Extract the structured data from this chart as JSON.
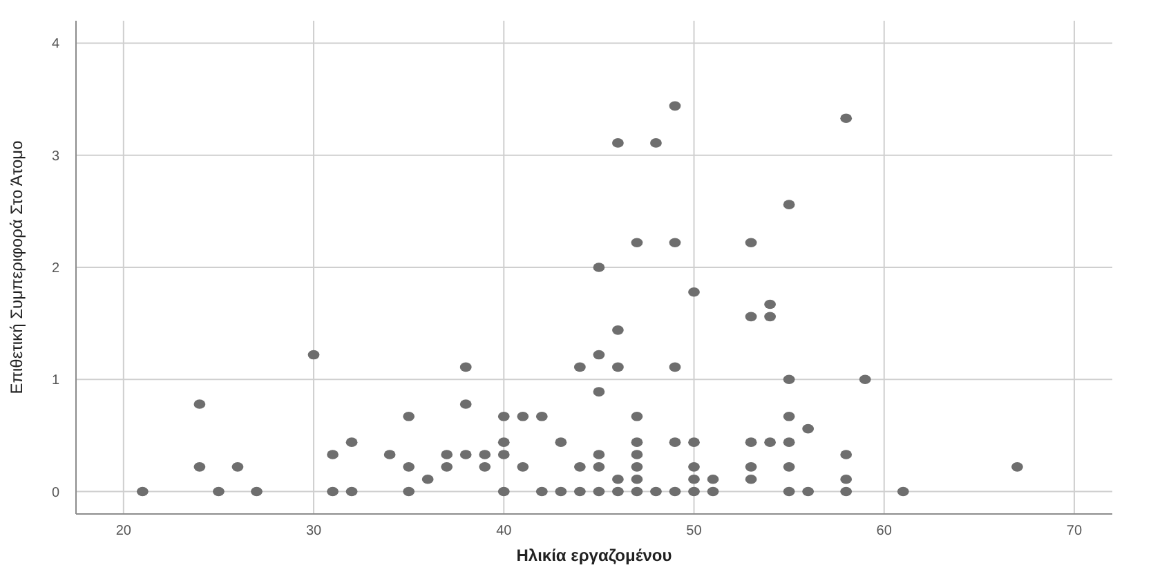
{
  "chart_data": {
    "type": "scatter",
    "xlabel": "Ηλικία εργαζομένου",
    "ylabel": "Επιθετική Συμπεριφορά Στο Άτομο",
    "xlim": [
      17.5,
      72
    ],
    "ylim": [
      -0.2,
      4.2
    ],
    "xticks": [
      20,
      30,
      40,
      50,
      60,
      70
    ],
    "yticks": [
      0,
      1,
      2,
      3,
      4
    ],
    "grid": true,
    "marker": "circle",
    "series": [
      {
        "color": "#6e6e6e",
        "x": [
          21,
          24,
          24,
          25,
          26,
          27,
          30,
          31,
          31,
          32,
          32,
          34,
          35,
          35,
          35,
          36,
          37,
          37,
          38,
          38,
          38,
          39,
          39,
          40,
          40,
          40,
          40,
          41,
          41,
          42,
          42,
          43,
          43,
          44,
          44,
          44,
          45,
          45,
          45,
          45,
          45,
          45,
          46,
          46,
          46,
          46,
          46,
          47,
          47,
          47,
          47,
          47,
          47,
          47,
          48,
          48,
          49,
          49,
          49,
          49,
          49,
          50,
          50,
          50,
          50,
          50,
          51,
          51,
          53,
          53,
          53,
          53,
          53,
          54,
          54,
          54,
          55,
          55,
          55,
          55,
          55,
          55,
          56,
          56,
          58,
          58,
          58,
          58,
          59,
          61,
          67
        ],
        "values": [
          0,
          0.78,
          0.22,
          0,
          0.22,
          0,
          1.22,
          0.33,
          0,
          0.44,
          0,
          0.33,
          0.67,
          0.22,
          0,
          0.11,
          0.33,
          0.22,
          1.11,
          0.78,
          0.33,
          0.33,
          0.22,
          0.67,
          0.44,
          0.33,
          0,
          0.67,
          0.22,
          0.67,
          0,
          0.44,
          0,
          1.11,
          0.22,
          0,
          2,
          1.22,
          0.89,
          0.33,
          0.22,
          0,
          3.11,
          1.44,
          1.11,
          0.11,
          0,
          2.22,
          0.67,
          0.44,
          0.33,
          0.22,
          0.11,
          0,
          3.11,
          0,
          3.44,
          2.22,
          1.11,
          0.44,
          0,
          1.78,
          0.44,
          0.22,
          0.11,
          0,
          0.11,
          0,
          2.22,
          1.56,
          0.44,
          0.22,
          0.11,
          1.67,
          1.56,
          0.44,
          2.56,
          1,
          0.67,
          0.44,
          0.22,
          0,
          0.56,
          0,
          3.33,
          0.33,
          0.11,
          0,
          1,
          0,
          0.22
        ]
      }
    ]
  }
}
